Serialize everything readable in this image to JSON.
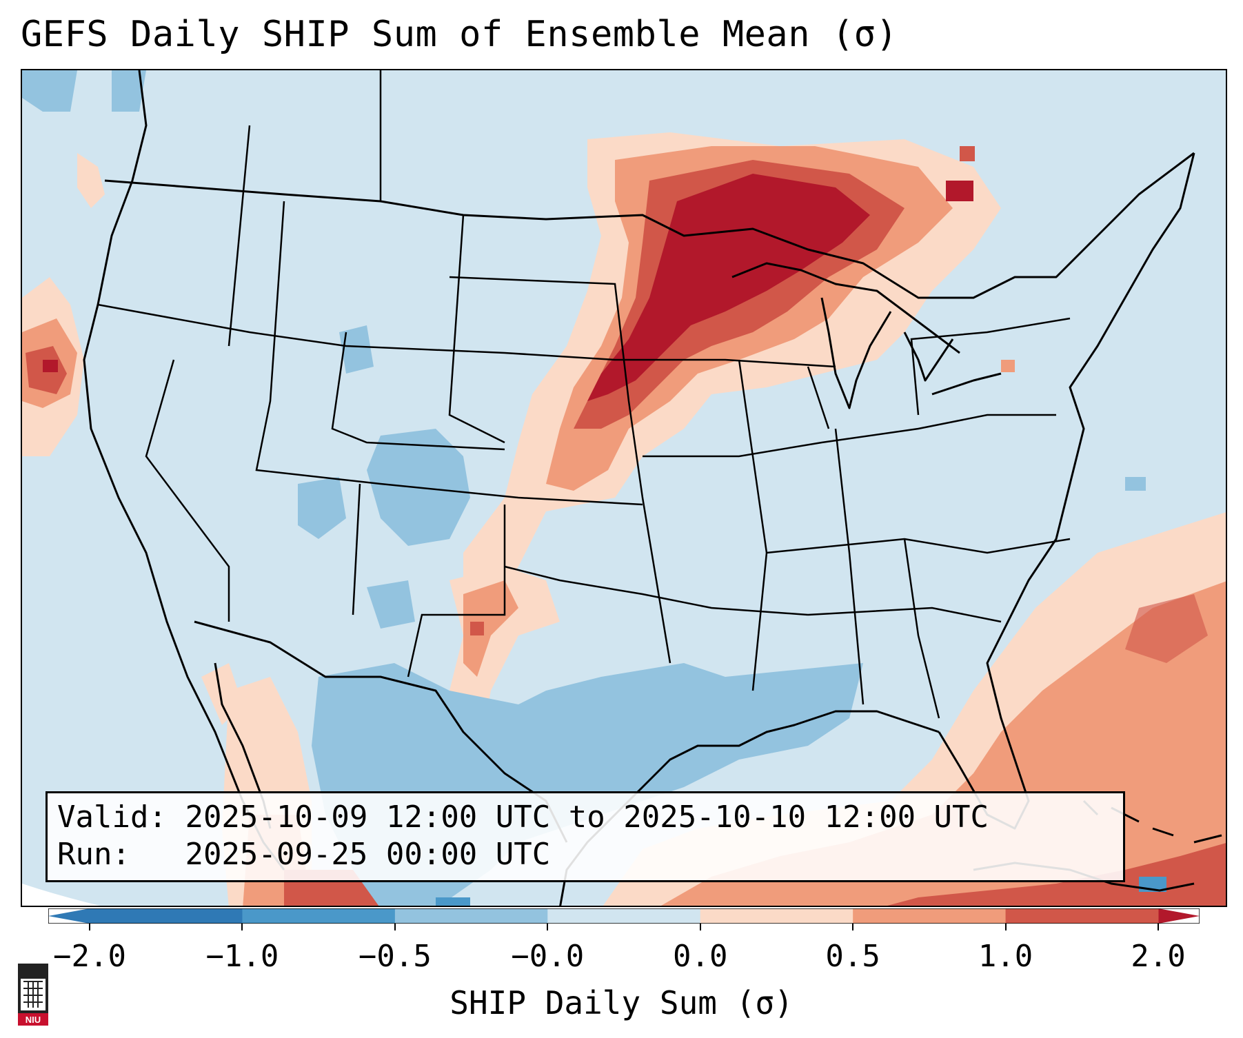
{
  "title": "GEFS Daily SHIP Sum of Ensemble Mean (σ)",
  "info": {
    "valid_label": "Valid:",
    "valid_value": "2025-10-09 12:00 UTC to 2025-10-10 12:00 UTC",
    "run_label": "Run:",
    "run_value": "2025-09-25 00:00 UTC"
  },
  "colorbar": {
    "label": "SHIP Daily Sum (σ)",
    "ticks": [
      "−2.0",
      "−1.0",
      "−0.5",
      "−0.0",
      "0.0",
      "0.5",
      "1.0",
      "2.0"
    ],
    "colors": [
      "#2f79b5",
      "#4a98c9",
      "#93c3df",
      "#d1e5f0",
      "#fbdac7",
      "#f09c7b",
      "#d15749",
      "#b2182b"
    ]
  },
  "map": {
    "description_values": [
      "contiguous United States",
      "Gulf of Mexico",
      "western Atlantic"
    ]
  },
  "logo": {
    "text": "NIU",
    "color": "#c8102e"
  }
}
